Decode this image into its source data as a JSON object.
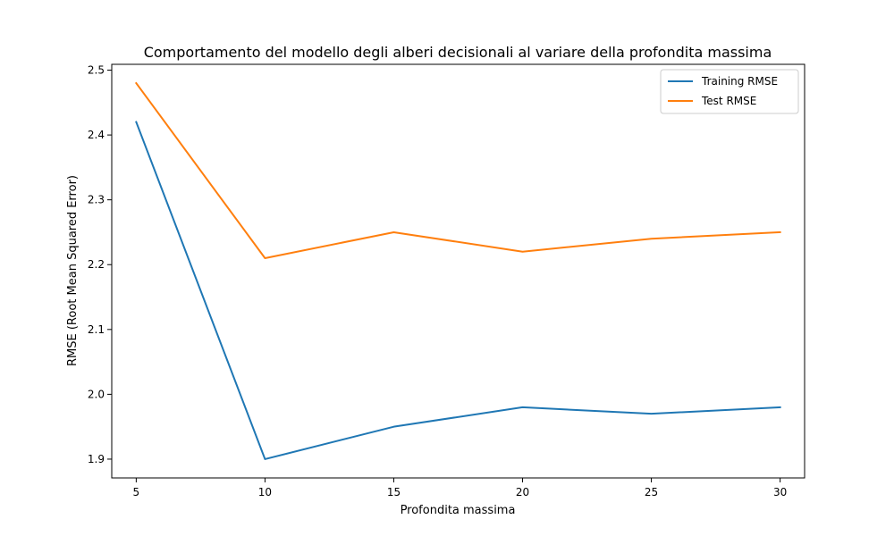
{
  "chart_data": {
    "type": "line",
    "title": "Comportamento del modello degli alberi decisionali al variare della profondita massima",
    "xlabel": "Profondita massima",
    "ylabel": "RMSE (Root Mean Squared Error)",
    "x": [
      5,
      10,
      15,
      20,
      25,
      30
    ],
    "xticks": [
      "5",
      "10",
      "15",
      "20",
      "25",
      "30"
    ],
    "yticks": [
      "1.9",
      "2.0",
      "2.1",
      "2.2",
      "2.3",
      "2.4",
      "2.5"
    ],
    "xlim": [
      4.05,
      30.95
    ],
    "ylim": [
      1.871,
      2.509
    ],
    "grid": false,
    "legend_position": "top-right",
    "series": [
      {
        "name": "Training RMSE",
        "color": "#1f77b4",
        "values": [
          2.42,
          1.9,
          1.95,
          1.98,
          1.97,
          1.98
        ]
      },
      {
        "name": "Test RMSE",
        "color": "#ff7f0e",
        "values": [
          2.48,
          2.21,
          2.25,
          2.22,
          2.24,
          2.25
        ]
      }
    ]
  }
}
